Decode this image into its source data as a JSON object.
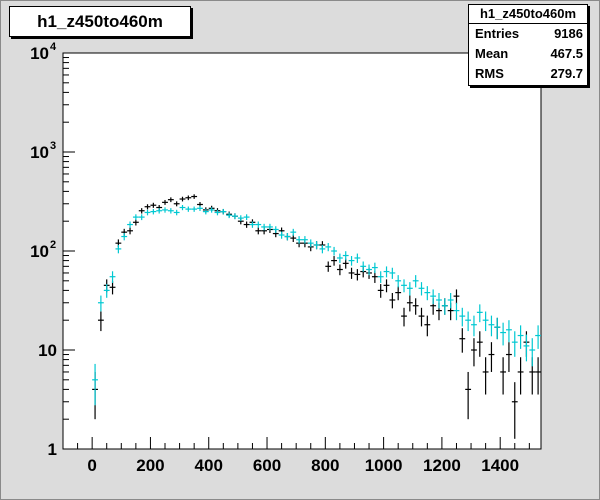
{
  "chart_data": {
    "type": "scatter",
    "title": "h1_z450to460m",
    "xlim": [
      -100,
      1540
    ],
    "ylim": [
      1,
      10000
    ],
    "yscale": "log",
    "x_ticks": [
      0,
      200,
      400,
      600,
      800,
      1000,
      1200,
      1400
    ],
    "y_ticks": [
      {
        "value": 1,
        "label": "1",
        "exp": ""
      },
      {
        "value": 10,
        "label": "10",
        "exp": ""
      },
      {
        "value": 100,
        "label": "10",
        "exp": "2"
      },
      {
        "value": 1000,
        "label": "10",
        "exp": "3"
      },
      {
        "value": 10000,
        "label": "10",
        "exp": "4"
      }
    ],
    "bin_half_width": 10,
    "stats": {
      "title": "h1_z450to460m",
      "rows": [
        {
          "label": "Entries",
          "value": "9186"
        },
        {
          "label": "Mean",
          "value": "467.5"
        },
        {
          "label": "RMS",
          "value": "279.7"
        }
      ]
    },
    "series": [
      {
        "color": "#000000",
        "points": [
          [
            10,
            4
          ],
          [
            30,
            20
          ],
          [
            50,
            45
          ],
          [
            70,
            43
          ],
          [
            90,
            120
          ],
          [
            110,
            155
          ],
          [
            130,
            160
          ],
          [
            150,
            195
          ],
          [
            170,
            255
          ],
          [
            190,
            280
          ],
          [
            210,
            290
          ],
          [
            230,
            275
          ],
          [
            250,
            310
          ],
          [
            270,
            330
          ],
          [
            290,
            300
          ],
          [
            310,
            335
          ],
          [
            330,
            345
          ],
          [
            350,
            355
          ],
          [
            370,
            295
          ],
          [
            390,
            260
          ],
          [
            410,
            270
          ],
          [
            430,
            255
          ],
          [
            450,
            250
          ],
          [
            470,
            235
          ],
          [
            490,
            225
          ],
          [
            510,
            200
          ],
          [
            530,
            185
          ],
          [
            550,
            195
          ],
          [
            570,
            160
          ],
          [
            590,
            160
          ],
          [
            610,
            165
          ],
          [
            630,
            150
          ],
          [
            650,
            160
          ],
          [
            670,
            140
          ],
          [
            690,
            135
          ],
          [
            710,
            120
          ],
          [
            730,
            120
          ],
          [
            750,
            110
          ],
          [
            770,
            115
          ],
          [
            790,
            115
          ],
          [
            810,
            70
          ],
          [
            830,
            80
          ],
          [
            850,
            65
          ],
          [
            870,
            75
          ],
          [
            890,
            60
          ],
          [
            910,
            58
          ],
          [
            930,
            62
          ],
          [
            950,
            60
          ],
          [
            970,
            55
          ],
          [
            990,
            40
          ],
          [
            1010,
            45
          ],
          [
            1030,
            32
          ],
          [
            1050,
            38
          ],
          [
            1070,
            22
          ],
          [
            1090,
            30
          ],
          [
            1110,
            28
          ],
          [
            1130,
            22
          ],
          [
            1150,
            18
          ],
          [
            1170,
            28
          ],
          [
            1190,
            25
          ],
          [
            1210,
            28
          ],
          [
            1230,
            25
          ],
          [
            1250,
            35
          ],
          [
            1270,
            13
          ],
          [
            1290,
            4
          ],
          [
            1310,
            10
          ],
          [
            1330,
            12
          ],
          [
            1350,
            6
          ],
          [
            1370,
            9
          ],
          [
            1390,
            17
          ],
          [
            1410,
            6
          ],
          [
            1430,
            9
          ],
          [
            1450,
            3
          ],
          [
            1470,
            6
          ],
          [
            1490,
            12
          ],
          [
            1510,
            6
          ],
          [
            1530,
            6
          ]
        ]
      },
      {
        "color": "#00c8d2",
        "points": [
          [
            10,
            5
          ],
          [
            30,
            30
          ],
          [
            50,
            40
          ],
          [
            70,
            55
          ],
          [
            90,
            105
          ],
          [
            110,
            140
          ],
          [
            130,
            185
          ],
          [
            150,
            220
          ],
          [
            170,
            220
          ],
          [
            190,
            245
          ],
          [
            210,
            250
          ],
          [
            230,
            255
          ],
          [
            250,
            260
          ],
          [
            270,
            255
          ],
          [
            290,
            245
          ],
          [
            310,
            275
          ],
          [
            330,
            265
          ],
          [
            350,
            265
          ],
          [
            370,
            270
          ],
          [
            390,
            250
          ],
          [
            410,
            260
          ],
          [
            430,
            245
          ],
          [
            450,
            250
          ],
          [
            470,
            230
          ],
          [
            490,
            225
          ],
          [
            510,
            215
          ],
          [
            530,
            220
          ],
          [
            550,
            185
          ],
          [
            570,
            185
          ],
          [
            590,
            175
          ],
          [
            610,
            175
          ],
          [
            630,
            165
          ],
          [
            650,
            145
          ],
          [
            670,
            140
          ],
          [
            690,
            155
          ],
          [
            710,
            130
          ],
          [
            730,
            130
          ],
          [
            750,
            120
          ],
          [
            770,
            115
          ],
          [
            790,
            105
          ],
          [
            810,
            110
          ],
          [
            830,
            100
          ],
          [
            850,
            85
          ],
          [
            870,
            90
          ],
          [
            890,
            80
          ],
          [
            910,
            85
          ],
          [
            930,
            70
          ],
          [
            950,
            65
          ],
          [
            970,
            68
          ],
          [
            990,
            55
          ],
          [
            1010,
            62
          ],
          [
            1030,
            60
          ],
          [
            1050,
            50
          ],
          [
            1070,
            45
          ],
          [
            1090,
            42
          ],
          [
            1110,
            50
          ],
          [
            1130,
            42
          ],
          [
            1150,
            38
          ],
          [
            1170,
            35
          ],
          [
            1190,
            32
          ],
          [
            1210,
            28
          ],
          [
            1230,
            32
          ],
          [
            1250,
            25
          ],
          [
            1270,
            22
          ],
          [
            1290,
            20
          ],
          [
            1310,
            18
          ],
          [
            1330,
            24
          ],
          [
            1350,
            20
          ],
          [
            1370,
            18
          ],
          [
            1390,
            17
          ],
          [
            1410,
            15
          ],
          [
            1430,
            16
          ],
          [
            1450,
            12
          ],
          [
            1470,
            14
          ],
          [
            1490,
            11
          ],
          [
            1510,
            10
          ],
          [
            1530,
            14
          ]
        ]
      }
    ]
  }
}
